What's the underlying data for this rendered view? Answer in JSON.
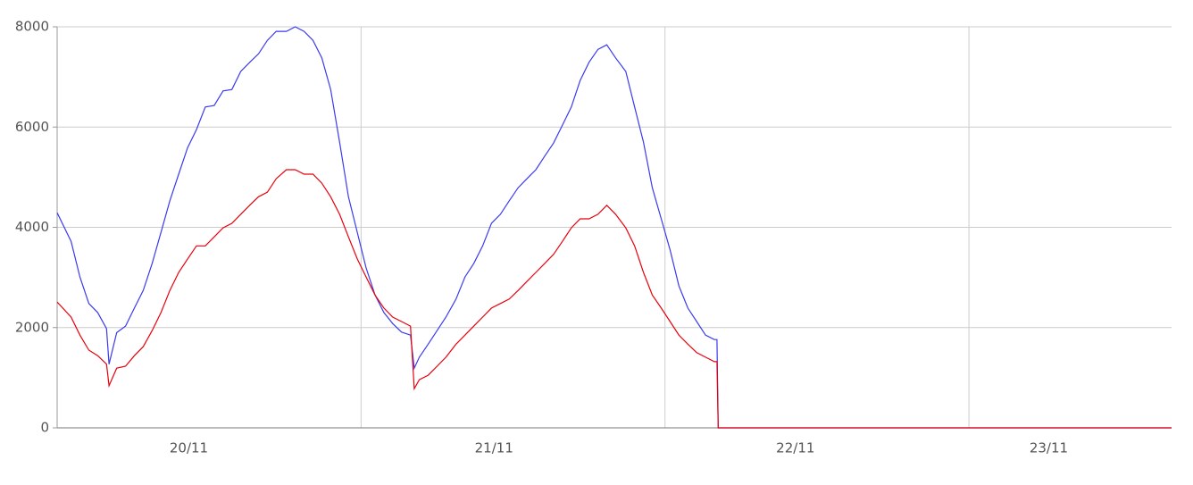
{
  "chart_data": {
    "type": "line",
    "x": [
      0,
      1.1,
      1.8,
      2.5,
      3.2,
      3.9,
      4.1,
      4.7,
      5.4,
      6.1,
      6.8,
      7.5,
      8.2,
      8.9,
      9.6,
      10.3,
      11.0,
      11.7,
      12.4,
      13.1,
      13.8,
      14.5,
      15.2,
      15.9,
      16.6,
      17.3,
      18.1,
      18.8,
      19.5,
      20.2,
      20.9,
      21.6,
      22.3,
      23.0,
      23.7,
      24.4,
      25.1,
      25.8,
      26.5,
      27.2,
      27.9,
      28.2,
      28.6,
      29.3,
      30.0,
      30.7,
      31.5,
      32.2,
      32.9,
      33.6,
      34.3,
      35.0,
      35.7,
      36.4,
      37.1,
      37.8,
      38.5,
      39.2,
      39.9,
      40.6,
      41.3,
      42.0,
      42.7,
      43.4,
      44.1,
      44.9,
      45.6,
      46.3,
      47.0,
      47.7,
      48.4,
      49.1,
      49.8,
      50.5,
      51.2,
      51.9,
      52.1,
      52.2,
      88
    ],
    "series": [
      {
        "color": "#3a3af0",
        "values": [
          4290,
          3720,
          3010,
          2480,
          2300,
          1980,
          1270,
          1900,
          2030,
          2390,
          2740,
          3280,
          3900,
          4530,
          5060,
          5590,
          5950,
          6400,
          6430,
          6720,
          6750,
          7110,
          7290,
          7460,
          7730,
          7910,
          7910,
          8000,
          7910,
          7730,
          7380,
          6750,
          5700,
          4610,
          3900,
          3190,
          2650,
          2300,
          2080,
          1910,
          1850,
          1190,
          1410,
          1670,
          1940,
          2210,
          2570,
          3010,
          3280,
          3630,
          4080,
          4260,
          4530,
          4790,
          4970,
          5150,
          5420,
          5680,
          6040,
          6400,
          6930,
          7290,
          7550,
          7640,
          7380,
          7110,
          6400,
          5700,
          4790,
          4170,
          3550,
          2830,
          2390,
          2120,
          1850,
          1760,
          1760,
          0,
          0
        ]
      },
      {
        "color": "#e8000b",
        "values": [
          2510,
          2210,
          1850,
          1550,
          1440,
          1270,
          840,
          1190,
          1230,
          1440,
          1620,
          1940,
          2300,
          2740,
          3100,
          3370,
          3630,
          3630,
          3810,
          3990,
          4080,
          4260,
          4440,
          4610,
          4700,
          4970,
          5150,
          5150,
          5060,
          5060,
          4880,
          4610,
          4260,
          3810,
          3370,
          3010,
          2650,
          2390,
          2210,
          2120,
          2030,
          780,
          960,
          1050,
          1230,
          1410,
          1670,
          1850,
          2030,
          2210,
          2390,
          2480,
          2570,
          2740,
          2920,
          3100,
          3280,
          3460,
          3720,
          3990,
          4170,
          4170,
          4260,
          4440,
          4260,
          3990,
          3630,
          3100,
          2650,
          2390,
          2120,
          1850,
          1670,
          1500,
          1410,
          1320,
          1320,
          0,
          0
        ]
      }
    ],
    "xlim": [
      0,
      88
    ],
    "xticks": [
      {
        "value": 10.4,
        "label": "20/11"
      },
      {
        "value": 34.5,
        "label": "21/11"
      },
      {
        "value": 58.3,
        "label": "22/11"
      },
      {
        "value": 78.3,
        "label": "23/11"
      }
    ],
    "xgrid": [
      24,
      48,
      72
    ],
    "ylim": [
      0,
      8000
    ],
    "yticks": [
      0,
      2000,
      4000,
      6000,
      8000
    ],
    "grid": true
  }
}
